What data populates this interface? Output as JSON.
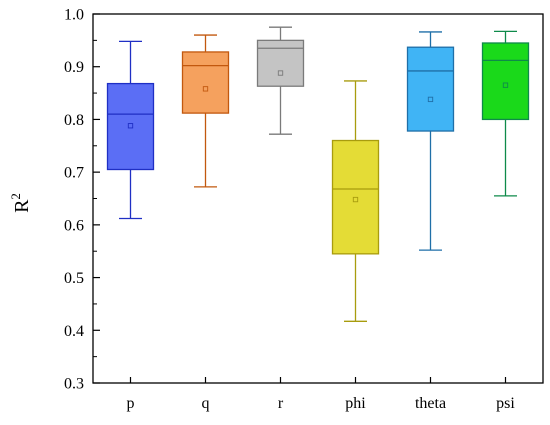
{
  "chart_data": {
    "type": "box",
    "title": "",
    "xlabel": "",
    "ylabel": "R",
    "ylabel_superscript": "2",
    "ylim": [
      0.3,
      1.0
    ],
    "yticks": [
      "0.3",
      "0.4",
      "0.5",
      "0.6",
      "0.7",
      "0.8",
      "0.9",
      "1.0"
    ],
    "grid": false,
    "categories": [
      "p",
      "q",
      "r",
      "phi",
      "theta",
      "psi"
    ],
    "boxes": [
      {
        "category": "p",
        "whisker_low": 0.612,
        "q1": 0.705,
        "median": 0.81,
        "q3": 0.868,
        "whisker_high": 0.948,
        "mean": 0.788,
        "fill": "#5b6ef5",
        "stroke": "#1f2fc4"
      },
      {
        "category": "q",
        "whisker_low": 0.672,
        "q1": 0.812,
        "median": 0.902,
        "q3": 0.928,
        "whisker_high": 0.96,
        "mean": 0.858,
        "fill": "#f5a15e",
        "stroke": "#c2580e"
      },
      {
        "category": "r",
        "whisker_low": 0.772,
        "q1": 0.863,
        "median": 0.935,
        "q3": 0.95,
        "whisker_high": 0.975,
        "mean": 0.888,
        "fill": "#c4c4c4",
        "stroke": "#7a7a7a"
      },
      {
        "category": "phi",
        "whisker_low": 0.417,
        "q1": 0.545,
        "median": 0.668,
        "q3": 0.76,
        "whisker_high": 0.873,
        "mean": 0.648,
        "fill": "#e4dc36",
        "stroke": "#a89c0e"
      },
      {
        "category": "theta",
        "whisker_low": 0.552,
        "q1": 0.778,
        "median": 0.892,
        "q3": 0.937,
        "whisker_high": 0.966,
        "mean": 0.838,
        "fill": "#40b4f5",
        "stroke": "#1f6fa8"
      },
      {
        "category": "psi",
        "whisker_low": 0.655,
        "q1": 0.8,
        "median": 0.912,
        "q3": 0.945,
        "whisker_high": 0.967,
        "mean": 0.865,
        "fill": "#1ad91a",
        "stroke": "#0e8a4a"
      }
    ]
  }
}
